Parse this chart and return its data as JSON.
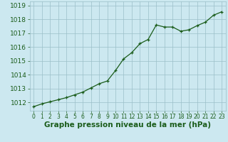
{
  "hours": [
    0,
    1,
    2,
    3,
    4,
    5,
    6,
    7,
    8,
    9,
    10,
    11,
    12,
    13,
    14,
    15,
    16,
    17,
    18,
    19,
    20,
    21,
    22,
    23
  ],
  "pressure": [
    1011.7,
    1011.9,
    1012.05,
    1012.2,
    1012.35,
    1012.55,
    1012.75,
    1013.05,
    1013.35,
    1013.55,
    1014.3,
    1015.15,
    1015.6,
    1016.25,
    1016.55,
    1017.6,
    1017.45,
    1017.45,
    1017.15,
    1017.25,
    1017.55,
    1017.8,
    1018.3,
    1018.55
  ],
  "xlim_min": -0.5,
  "xlim_max": 23.5,
  "ylim_min": 1011.4,
  "ylim_max": 1019.3,
  "yticks": [
    1012,
    1013,
    1014,
    1015,
    1016,
    1017,
    1018,
    1019
  ],
  "xticks": [
    0,
    1,
    2,
    3,
    4,
    5,
    6,
    7,
    8,
    9,
    10,
    11,
    12,
    13,
    14,
    15,
    16,
    17,
    18,
    19,
    20,
    21,
    22,
    23
  ],
  "line_color": "#1a5c1a",
  "bg_color": "#cce8f0",
  "grid_color": "#9bbfc8",
  "xlabel": "Graphe pression niveau de la mer (hPa)",
  "xlabel_color": "#1a5c1a",
  "tick_color": "#1a5c1a",
  "ytick_fontsize": 6.5,
  "xtick_fontsize": 5.5,
  "xlabel_fontsize": 7.5,
  "linewidth": 0.9,
  "markersize": 3.5
}
